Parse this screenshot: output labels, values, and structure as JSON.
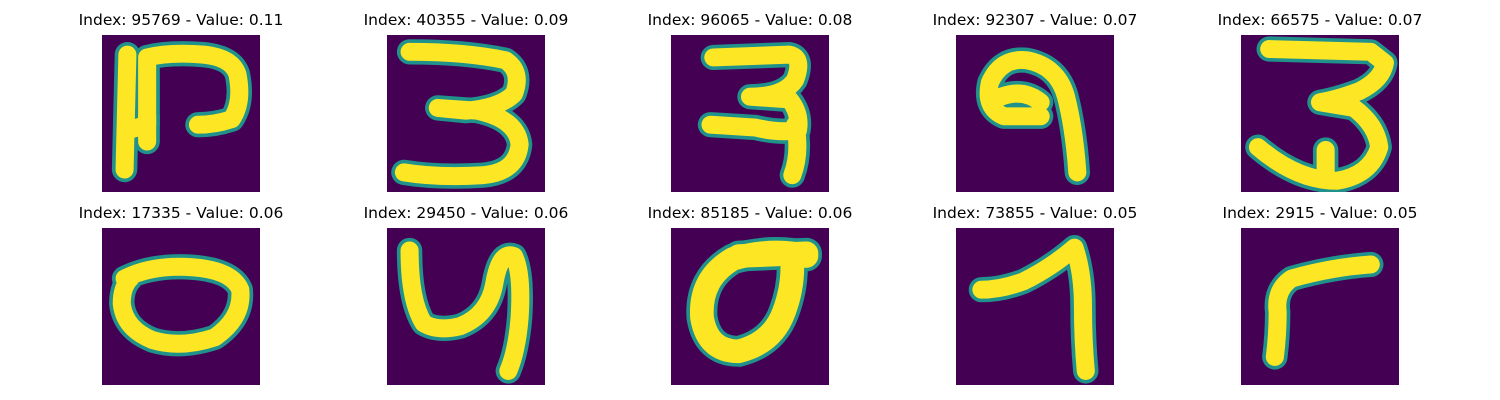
{
  "figure": {
    "background_color": "#440154",
    "ink_color": "#fde725",
    "edge_color": "#21918c",
    "panels": [
      {
        "title": "Index: 95769 - Value: 0.11",
        "index": 95769,
        "value": 0.11,
        "glyph": "digit-2-with-stroke"
      },
      {
        "title": "Index: 40355 - Value: 0.09",
        "index": 40355,
        "value": 0.09,
        "glyph": "digit-3"
      },
      {
        "title": "Index: 96065 - Value: 0.08",
        "index": 96065,
        "value": 0.08,
        "glyph": "digit-3-hooked"
      },
      {
        "title": "Index: 92307 - Value: 0.07",
        "index": 92307,
        "value": 0.07,
        "glyph": "digit-9"
      },
      {
        "title": "Index: 66575 - Value: 0.07",
        "index": 66575,
        "value": 0.07,
        "glyph": "digit-3-open"
      },
      {
        "title": "Index: 17335 - Value: 0.06",
        "index": 17335,
        "value": 0.06,
        "glyph": "digit-0-flat"
      },
      {
        "title": "Index: 29450 - Value: 0.06",
        "index": 29450,
        "value": 0.06,
        "glyph": "digit-4-curved"
      },
      {
        "title": "Index: 85185 - Value: 0.06",
        "index": 85185,
        "value": 0.06,
        "glyph": "digit-0-thick"
      },
      {
        "title": "Index: 73855 - Value: 0.05",
        "index": 73855,
        "value": 0.05,
        "glyph": "digit-1-flag"
      },
      {
        "title": "Index: 2915 - Value: 0.05",
        "index": 2915,
        "value": 0.05,
        "glyph": "digit-7-rotated"
      }
    ]
  }
}
